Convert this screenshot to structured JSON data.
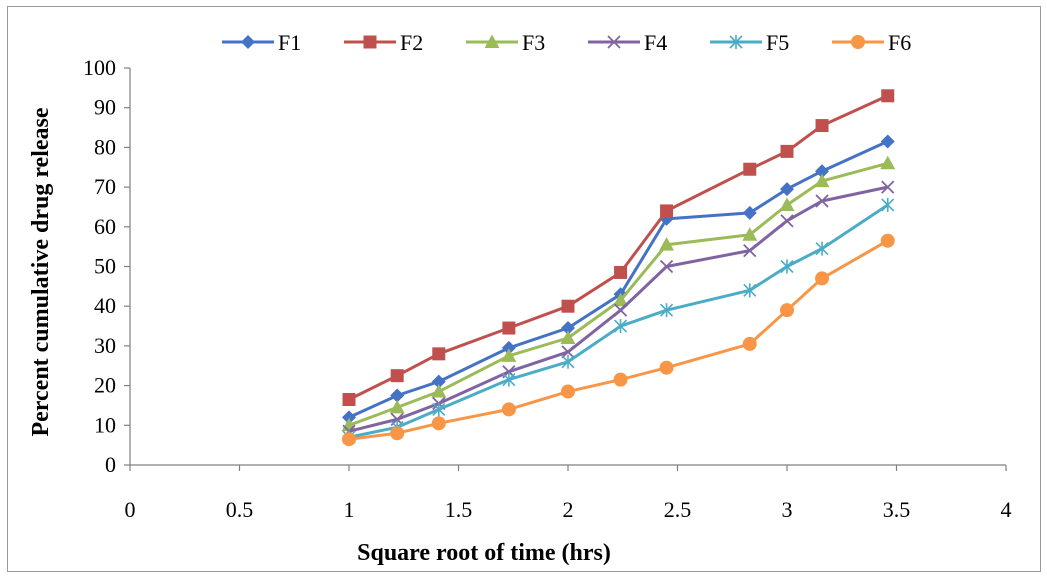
{
  "chart_data": {
    "type": "line",
    "title": "",
    "xlabel": "Square root of time (hrs)",
    "ylabel": "Percent cumulative drug release",
    "xlim": [
      0,
      4
    ],
    "ylim": [
      0,
      100
    ],
    "xticks": [
      "0",
      "0.5",
      "1",
      "1.5",
      "2",
      "2.5",
      "3",
      "3.5",
      "4"
    ],
    "yticks": [
      "0",
      "10",
      "20",
      "30",
      "40",
      "50",
      "60",
      "70",
      "80",
      "90",
      "100"
    ],
    "grid": false,
    "legend_position": "top",
    "x": [
      1,
      1.22,
      1.41,
      1.73,
      2,
      2.24,
      2.45,
      2.83,
      3,
      3.16,
      3.46
    ],
    "series": [
      {
        "name": "F1",
        "color": "#4472c4",
        "marker": "diamond",
        "values": [
          12,
          17.5,
          21,
          29.5,
          34.5,
          43,
          62,
          63.5,
          69.5,
          74,
          81.5
        ]
      },
      {
        "name": "F2",
        "color": "#c0504d",
        "marker": "square",
        "values": [
          16.5,
          22.5,
          28,
          34.5,
          40,
          48.5,
          64,
          74.5,
          79,
          85.5,
          93
        ]
      },
      {
        "name": "F3",
        "color": "#9bbb59",
        "marker": "triangle",
        "values": [
          10,
          14.5,
          18.5,
          27.5,
          32,
          41.5,
          55.5,
          58,
          65.5,
          71.5,
          76
        ]
      },
      {
        "name": "F4",
        "color": "#8064a2",
        "marker": "x",
        "values": [
          8.5,
          11.5,
          15.5,
          23.5,
          28.5,
          39,
          50,
          54,
          61.5,
          66.5,
          70
        ]
      },
      {
        "name": "F5",
        "color": "#4bacc6",
        "marker": "star",
        "values": [
          7,
          9.5,
          14,
          21.5,
          26,
          35,
          39,
          44,
          50,
          54.5,
          65.5
        ]
      },
      {
        "name": "F6",
        "color": "#f79646",
        "marker": "circle",
        "values": [
          6.5,
          8,
          10.5,
          14,
          18.5,
          21.5,
          24.5,
          30.5,
          39,
          47,
          56.5
        ]
      }
    ]
  }
}
